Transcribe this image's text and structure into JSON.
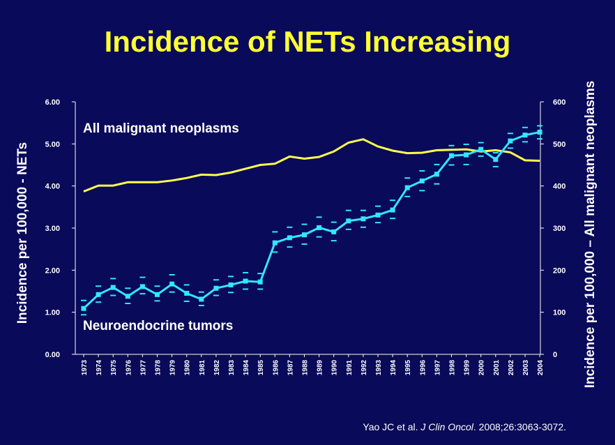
{
  "title": "Incidence of NETs Increasing",
  "citation": {
    "authors": "Yao JC et al. ",
    "journal": "J Clin Oncol",
    "rest": ". 2008;26:3063-3072."
  },
  "colors": {
    "background": "#0a0a5a",
    "title": "#ffff33",
    "malignant_line": "#ffff4d",
    "net_line": "#33e6ff",
    "net_ci": "#33e6ff",
    "axis": "#ffffff"
  },
  "chart_data": {
    "type": "line",
    "x": [
      "1973",
      "1974",
      "1975",
      "1976",
      "1977",
      "1978",
      "1979",
      "1980",
      "1981",
      "1982",
      "1983",
      "1984",
      "1985",
      "1986",
      "1987",
      "1988",
      "1989",
      "1990",
      "1991",
      "1992",
      "1993",
      "1994",
      "1995",
      "1996",
      "1997",
      "1998",
      "1999",
      "2000",
      "2001",
      "2002",
      "2003",
      "2004"
    ],
    "y_left": {
      "label": "Incidence per 100,000 - NETs",
      "ticks": [
        "0.00",
        "1.00",
        "2.00",
        "3.00",
        "4.00",
        "5.00",
        "6.00"
      ],
      "range": [
        0,
        6
      ]
    },
    "y_right": {
      "label": "Incidence per 100,000 – All malignant neoplasms",
      "ticks": [
        "0",
        "100",
        "200",
        "300",
        "400",
        "500",
        "600"
      ],
      "range": [
        0,
        600
      ]
    },
    "series": [
      {
        "name": "All malignant neoplasms",
        "axis": "right",
        "values": [
          387,
          401,
          401,
          409,
          409,
          409,
          413,
          419,
          427,
          426,
          432,
          441,
          450,
          453,
          470,
          465,
          469,
          482,
          503,
          511,
          494,
          484,
          478,
          479,
          485,
          486,
          487,
          482,
          485,
          480,
          461,
          460
        ]
      },
      {
        "name": "Neuroendocrine tumors",
        "axis": "left",
        "values": [
          1.09,
          1.42,
          1.59,
          1.38,
          1.61,
          1.42,
          1.67,
          1.45,
          1.31,
          1.57,
          1.65,
          1.74,
          1.72,
          2.65,
          2.77,
          2.84,
          3.01,
          2.91,
          3.17,
          3.22,
          3.31,
          3.43,
          3.96,
          4.12,
          4.28,
          4.72,
          4.74,
          4.87,
          4.63,
          5.07,
          5.21,
          5.28
        ],
        "ci_upper": [
          1.28,
          1.62,
          1.8,
          1.57,
          1.83,
          1.62,
          1.89,
          1.65,
          1.48,
          1.77,
          1.85,
          1.94,
          1.92,
          2.91,
          3.02,
          3.09,
          3.26,
          3.14,
          3.42,
          3.42,
          3.52,
          3.66,
          4.19,
          4.36,
          4.51,
          4.96,
          4.99,
          5.03,
          4.79,
          5.25,
          5.39,
          5.43
        ],
        "ci_lower": [
          0.94,
          1.24,
          1.4,
          1.21,
          1.44,
          1.27,
          1.48,
          1.26,
          1.16,
          1.4,
          1.47,
          1.55,
          1.55,
          2.43,
          2.55,
          2.62,
          2.79,
          2.7,
          2.97,
          3.02,
          3.13,
          3.23,
          3.75,
          3.89,
          4.05,
          4.5,
          4.51,
          4.71,
          4.46,
          4.9,
          5.05,
          5.12
        ]
      }
    ],
    "grid": false,
    "legend": "none"
  }
}
